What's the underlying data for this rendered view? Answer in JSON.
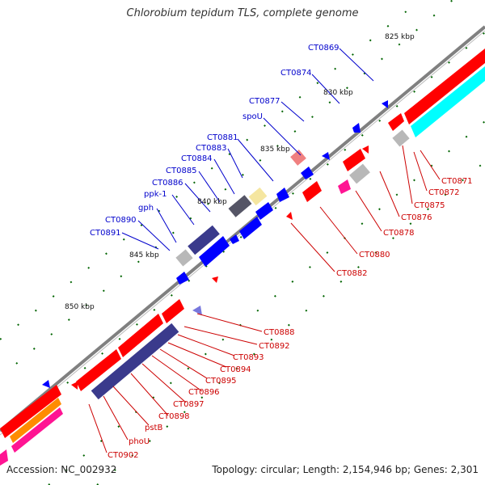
{
  "title": "Chlorobium tepidum TLS, complete genome",
  "footer": {
    "accession": "Accession: NC_002932",
    "summary": "Topology: circular; Length: 2,154,946 bp; Genes: 2,301"
  },
  "ticks": [
    "825 kbp",
    "830 kbp",
    "835 kbp",
    "840 kbp",
    "845 kbp",
    "850 kbp"
  ],
  "labels_blue": [
    "CT0869",
    "CT0874",
    "CT0877",
    "spoU",
    "CT0881",
    "CT0883",
    "CT0884",
    "CT0885",
    "CT0886",
    "ppk-1",
    "gph",
    "CT0890",
    "CT0891"
  ],
  "labels_red": [
    "CT0871",
    "CT0872",
    "CT0875",
    "CT0876",
    "CT0878",
    "CT0880",
    "CT0882",
    "CT0888",
    "CT0892",
    "CT0893",
    "CT0894",
    "CT0895",
    "CT0896",
    "CT0897",
    "CT0898",
    "pstB",
    "phoU",
    "CT0902"
  ],
  "colors": {
    "forward": "#ff0000",
    "reverse": "#0000ff",
    "backbone": "#808080",
    "tick": "#006400",
    "label_blue": "#0000cc",
    "label_red": "#cc0000",
    "cyan": "#00ffff",
    "navy": "#3a3a8c",
    "grey": "#b8b8b8",
    "dark_grey": "#555566",
    "tan": "#f5e6a0",
    "magenta": "#ff1493",
    "orange": "#ff8c00",
    "pink": "#f08080"
  }
}
